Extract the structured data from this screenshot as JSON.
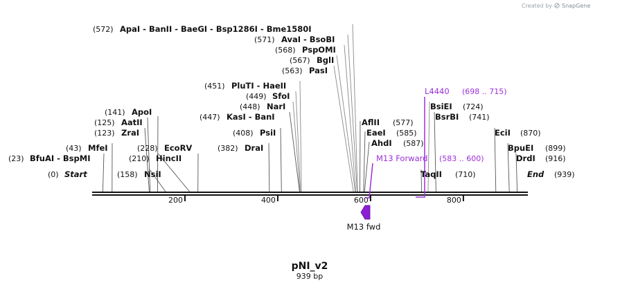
{
  "watermark": {
    "created_by": "Created by",
    "brand": "SnapGene"
  },
  "sequence": {
    "name": "pNI_v2",
    "length_label": "939 bp",
    "length": 939
  },
  "ends": [
    {
      "name": "Start",
      "pos": 0
    },
    {
      "name": "End",
      "pos": 939
    }
  ],
  "enzymes": [
    {
      "name": "BfuAI",
      "pos": 23
    },
    {
      "name": "BspMI",
      "pos": 23
    },
    {
      "name": "MfeI",
      "pos": 43
    },
    {
      "name": "ZraI",
      "pos": 123
    },
    {
      "name": "AatII",
      "pos": 125
    },
    {
      "name": "ApoI",
      "pos": 141
    },
    {
      "name": "NsiI",
      "pos": 158
    },
    {
      "name": "HincII",
      "pos": 210
    },
    {
      "name": "EcoRV",
      "pos": 228
    },
    {
      "name": "DraI",
      "pos": 382
    },
    {
      "name": "PsiI",
      "pos": 408
    },
    {
      "name": "KasI",
      "pos": 447
    },
    {
      "name": "BanI",
      "pos": 447
    },
    {
      "name": "NarI",
      "pos": 448
    },
    {
      "name": "SfoI",
      "pos": 449
    },
    {
      "name": "PluTI",
      "pos": 451
    },
    {
      "name": "HaeII",
      "pos": 451
    },
    {
      "name": "PasI",
      "pos": 563
    },
    {
      "name": "BglI",
      "pos": 567
    },
    {
      "name": "PspOMI",
      "pos": 568
    },
    {
      "name": "AvaI",
      "pos": 571
    },
    {
      "name": "BsoBI",
      "pos": 571
    },
    {
      "name": "ApaI",
      "pos": 572
    },
    {
      "name": "BanII",
      "pos": 572
    },
    {
      "name": "BaeGI",
      "pos": 572
    },
    {
      "name": "Bsp1286I",
      "pos": 572
    },
    {
      "name": "Bme1580I",
      "pos": 572
    },
    {
      "name": "AflII",
      "pos": 577
    },
    {
      "name": "EaeI",
      "pos": 585
    },
    {
      "name": "AhdI",
      "pos": 587
    },
    {
      "name": "TaqII",
      "pos": 710
    },
    {
      "name": "BsiEI",
      "pos": 724
    },
    {
      "name": "BsrBI",
      "pos": 741
    },
    {
      "name": "EciI",
      "pos": 870
    },
    {
      "name": "BpuEI",
      "pos": 899
    },
    {
      "name": "DrdI",
      "pos": 916
    }
  ],
  "primers": [
    {
      "name": "M13 Forward",
      "range_label": "(583 .. 600)",
      "start": 583,
      "end": 600
    },
    {
      "name": "L4440",
      "range_label": "(698 .. 715)",
      "start": 698,
      "end": 715
    }
  ],
  "features": [
    {
      "name": "M13 fwd",
      "start": 583,
      "end": 600,
      "direction": "reverse",
      "color": "#8b1fd6"
    }
  ],
  "ticks": [
    200,
    400,
    600,
    800
  ],
  "colors": {
    "backbone": "#111111",
    "primer": "#9b30d9",
    "cut_line": "#888888"
  },
  "labels": {
    "l1": {
      "pos_text": "(23)",
      "enz_text": "BfuAI  -  BspMI"
    },
    "l2": {
      "pos_text": "(43)",
      "enz_text": "MfeI"
    },
    "l3": {
      "pos_text": "(123)",
      "enz_text": "ZraI"
    },
    "l4": {
      "pos_text": "(125)",
      "enz_text": "AatII"
    },
    "l5": {
      "pos_text": "(141)",
      "enz_text": "ApoI"
    },
    "l6": {
      "pos_text": "(158)",
      "enz_text": "NsiI"
    },
    "l7": {
      "pos_text": "(210)",
      "enz_text": "HincII"
    },
    "l8": {
      "pos_text": "(228)",
      "enz_text": "EcoRV"
    },
    "l9": {
      "pos_text": "(382)",
      "enz_text": "DraI"
    },
    "l10": {
      "pos_text": "(408)",
      "enz_text": "PsiI"
    },
    "l11": {
      "pos_text": "(447)",
      "enz_text": "KasI  -  BanI"
    },
    "l12": {
      "pos_text": "(448)",
      "enz_text": "NarI"
    },
    "l13": {
      "pos_text": "(449)",
      "enz_text": "SfoI"
    },
    "l14": {
      "pos_text": "(451)",
      "enz_text": "PluTI  -  HaeII"
    },
    "l15": {
      "pos_text": "(563)",
      "enz_text": "PasI"
    },
    "l16": {
      "pos_text": "(567)",
      "enz_text": "BglI"
    },
    "l17": {
      "pos_text": "(568)",
      "enz_text": "PspOMI"
    },
    "l18": {
      "pos_text": "(571)",
      "enz_text": "AvaI  -  BsoBI"
    },
    "l19": {
      "pos_text": "(572)",
      "enz_text": "ApaI  -  BanII  -  BaeGI  -  Bsp1286I  -  Bme1580I"
    },
    "r1": {
      "enz_text": "AflII",
      "pos_text": "(577)"
    },
    "r2": {
      "enz_text": "EaeI",
      "pos_text": "(585)"
    },
    "r3": {
      "enz_text": "AhdI",
      "pos_text": "(587)"
    },
    "r4": {
      "enz_text": "TaqII",
      "pos_text": "(710)"
    },
    "r5": {
      "enz_text": "BsiEI",
      "pos_text": "(724)"
    },
    "r6": {
      "enz_text": "BsrBI",
      "pos_text": "(741)"
    },
    "r7": {
      "enz_text": "EciI",
      "pos_text": "(870)"
    },
    "r8": {
      "enz_text": "BpuEI",
      "pos_text": "(899)"
    },
    "r9": {
      "enz_text": "DrdI",
      "pos_text": "(916)"
    },
    "start": {
      "pos_text": "(0)",
      "name_text": "Start"
    },
    "end": {
      "name_text": "End",
      "pos_text": "(939)"
    }
  }
}
